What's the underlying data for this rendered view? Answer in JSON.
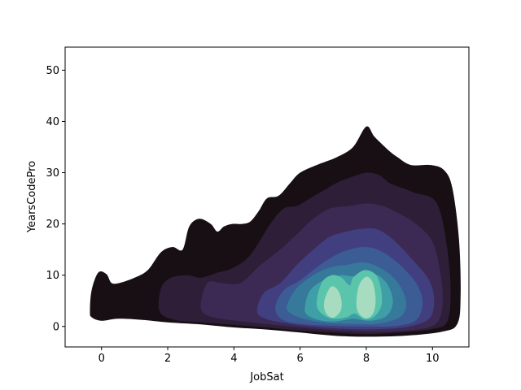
{
  "chart_data": {
    "type": "kde-density-contour",
    "title": "",
    "xlabel": "JobSat",
    "ylabel": "YearsCodePro",
    "xlim": [
      -1.1,
      11.1
    ],
    "ylim": [
      -4,
      54.5
    ],
    "x_ticks": [
      0,
      2,
      4,
      6,
      8,
      10
    ],
    "y_ticks": [
      0,
      10,
      20,
      30,
      40,
      50
    ],
    "grid": false,
    "legend": "none",
    "colormap": "mako",
    "level_colors": [
      "#170f13",
      "#2e1e38",
      "#3c2a55",
      "#413f7f",
      "#3c5c96",
      "#36799b",
      "#3f9fa6",
      "#5bc5ac",
      "#a8dcc0"
    ],
    "level_outlines": [
      [
        [
          -0.35,
          3
        ],
        [
          -0.3,
          7
        ],
        [
          -0.1,
          10.5
        ],
        [
          0.15,
          10.2
        ],
        [
          0.3,
          8.5
        ],
        [
          0.55,
          8.5
        ],
        [
          1.0,
          9.5
        ],
        [
          1.4,
          11
        ],
        [
          1.8,
          14.5
        ],
        [
          2.15,
          15.5
        ],
        [
          2.45,
          15
        ],
        [
          2.65,
          19.5
        ],
        [
          2.95,
          21
        ],
        [
          3.3,
          20
        ],
        [
          3.5,
          18.5
        ],
        [
          3.7,
          19.5
        ],
        [
          3.95,
          20
        ],
        [
          4.25,
          20
        ],
        [
          4.5,
          20.5
        ],
        [
          4.75,
          22.5
        ],
        [
          5.0,
          25
        ],
        [
          5.35,
          25.5
        ],
        [
          5.7,
          28
        ],
        [
          6.0,
          30
        ],
        [
          6.5,
          31.5
        ],
        [
          7.1,
          33
        ],
        [
          7.6,
          35
        ],
        [
          8.0,
          39
        ],
        [
          8.25,
          37
        ],
        [
          8.65,
          34.5
        ],
        [
          8.95,
          33
        ],
        [
          9.35,
          31.5
        ],
        [
          9.95,
          31.5
        ],
        [
          10.35,
          30.5
        ],
        [
          10.6,
          27
        ],
        [
          10.8,
          17
        ],
        [
          10.85,
          6
        ],
        [
          10.75,
          0.5
        ],
        [
          10.3,
          -1
        ],
        [
          9.2,
          -1.8
        ],
        [
          8.0,
          -2
        ],
        [
          7.0,
          -1.8
        ],
        [
          6.0,
          -1.2
        ],
        [
          5.0,
          -0.6
        ],
        [
          4.0,
          -0.2
        ],
        [
          3.0,
          0.4
        ],
        [
          2.0,
          0.8
        ],
        [
          1.2,
          1.3
        ],
        [
          0.5,
          1.5
        ],
        [
          0.0,
          1.1
        ],
        [
          -0.3,
          1.8
        ]
      ],
      [
        [
          1.75,
          3
        ],
        [
          1.8,
          7.5
        ],
        [
          2.1,
          9.5
        ],
        [
          2.6,
          10
        ],
        [
          3.0,
          9.5
        ],
        [
          3.5,
          10.5
        ],
        [
          4.0,
          11.5
        ],
        [
          4.5,
          14
        ],
        [
          5.1,
          20
        ],
        [
          5.5,
          23
        ],
        [
          5.9,
          23.5
        ],
        [
          6.3,
          25
        ],
        [
          6.7,
          26.5
        ],
        [
          7.1,
          28
        ],
        [
          7.5,
          29
        ],
        [
          8.0,
          30
        ],
        [
          8.4,
          29.5
        ],
        [
          8.7,
          28
        ],
        [
          9.1,
          27
        ],
        [
          9.5,
          26
        ],
        [
          10.0,
          25
        ],
        [
          10.25,
          22
        ],
        [
          10.45,
          15
        ],
        [
          10.55,
          7
        ],
        [
          10.45,
          1
        ],
        [
          10.0,
          -0.5
        ],
        [
          9.0,
          -1.2
        ],
        [
          8.0,
          -1.5
        ],
        [
          7.0,
          -1.2
        ],
        [
          6.0,
          -0.8
        ],
        [
          5.0,
          -0.2
        ],
        [
          4.0,
          0.3
        ],
        [
          3.0,
          0.8
        ],
        [
          2.2,
          1.3
        ]
      ],
      [
        [
          3.0,
          4.5
        ],
        [
          3.2,
          8.5
        ],
        [
          3.6,
          8.5
        ],
        [
          4.2,
          8.5
        ],
        [
          4.8,
          12
        ],
        [
          5.4,
          15
        ],
        [
          5.9,
          18
        ],
        [
          6.4,
          21
        ],
        [
          6.9,
          23
        ],
        [
          7.5,
          23.5
        ],
        [
          8.0,
          24
        ],
        [
          8.5,
          23.5
        ],
        [
          9.0,
          22
        ],
        [
          9.5,
          20
        ],
        [
          10.0,
          16.5
        ],
        [
          10.25,
          10
        ],
        [
          10.3,
          4
        ],
        [
          10.1,
          0.5
        ],
        [
          9.5,
          -0.6
        ],
        [
          8.5,
          -1.0
        ],
        [
          7.5,
          -0.9
        ],
        [
          6.5,
          -0.5
        ],
        [
          5.5,
          0.1
        ],
        [
          4.5,
          0.8
        ],
        [
          3.6,
          1.5
        ],
        [
          3.1,
          2.5
        ]
      ],
      [
        [
          4.7,
          3
        ],
        [
          4.9,
          6.5
        ],
        [
          5.4,
          8.5
        ],
        [
          5.9,
          12
        ],
        [
          6.4,
          15
        ],
        [
          6.9,
          17.5
        ],
        [
          7.4,
          18.5
        ],
        [
          7.8,
          19
        ],
        [
          8.3,
          19
        ],
        [
          8.8,
          17
        ],
        [
          9.4,
          13
        ],
        [
          9.9,
          9
        ],
        [
          10.05,
          5
        ],
        [
          9.9,
          1.5
        ],
        [
          9.3,
          0
        ],
        [
          8.5,
          -0.5
        ],
        [
          7.5,
          -0.5
        ],
        [
          6.5,
          -0.1
        ],
        [
          5.6,
          0.6
        ],
        [
          4.95,
          1.5
        ]
      ],
      [
        [
          5.25,
          3.5
        ],
        [
          5.5,
          7
        ],
        [
          6.0,
          9
        ],
        [
          6.6,
          12
        ],
        [
          7.1,
          14
        ],
        [
          7.5,
          15
        ],
        [
          8.0,
          15.5
        ],
        [
          8.5,
          14.5
        ],
        [
          9.1,
          11.5
        ],
        [
          9.55,
          8
        ],
        [
          9.7,
          4.5
        ],
        [
          9.5,
          1.2
        ],
        [
          8.9,
          0.1
        ],
        [
          8.0,
          0
        ],
        [
          7.1,
          0.1
        ],
        [
          6.2,
          0.4
        ],
        [
          5.5,
          1.2
        ]
      ],
      [
        [
          5.6,
          4
        ],
        [
          5.9,
          7.5
        ],
        [
          6.4,
          10
        ],
        [
          6.9,
          11.5
        ],
        [
          7.4,
          12
        ],
        [
          7.9,
          12.5
        ],
        [
          8.4,
          11.5
        ],
        [
          8.9,
          9
        ],
        [
          9.2,
          5
        ],
        [
          9.05,
          2
        ],
        [
          8.4,
          0.6
        ],
        [
          7.6,
          0.5
        ],
        [
          6.8,
          0.7
        ],
        [
          6.1,
          1.5
        ],
        [
          5.7,
          2.6
        ]
      ],
      [
        [
          6.15,
          4
        ],
        [
          6.3,
          7
        ],
        [
          6.7,
          9
        ],
        [
          7.2,
          10
        ],
        [
          7.6,
          9.8
        ],
        [
          8.0,
          10.5
        ],
        [
          8.4,
          9.8
        ],
        [
          8.7,
          7.5
        ],
        [
          8.8,
          4.5
        ],
        [
          8.6,
          2
        ],
        [
          8.1,
          1.1
        ],
        [
          7.6,
          1.5
        ],
        [
          7.1,
          1.0
        ],
        [
          6.6,
          1.2
        ],
        [
          6.2,
          2.3
        ]
      ],
      [
        [
          6.5,
          4.5
        ],
        [
          6.65,
          8.5
        ],
        [
          6.95,
          10
        ],
        [
          7.25,
          9.5
        ],
        [
          7.5,
          8
        ],
        [
          7.6,
          9.5
        ],
        [
          7.95,
          11
        ],
        [
          8.3,
          10
        ],
        [
          8.45,
          7
        ],
        [
          8.45,
          4
        ],
        [
          8.25,
          2
        ],
        [
          7.95,
          1.4
        ],
        [
          7.65,
          2.5
        ],
        [
          7.4,
          1.8
        ],
        [
          7.0,
          1.5
        ],
        [
          6.65,
          2.5
        ]
      ],
      [
        [
          6.72,
          4
        ],
        [
          6.78,
          6
        ],
        [
          6.95,
          7.8
        ],
        [
          7.15,
          7
        ],
        [
          7.25,
          5
        ],
        [
          7.22,
          3
        ],
        [
          7.0,
          1.7
        ],
        [
          6.8,
          2.4
        ]
      ],
      [
        [
          7.7,
          4.5
        ],
        [
          7.78,
          8
        ],
        [
          8.0,
          9.7
        ],
        [
          8.2,
          8.5
        ],
        [
          8.28,
          5
        ],
        [
          8.2,
          2.5
        ],
        [
          8.0,
          1.6
        ],
        [
          7.78,
          2.5
        ]
      ]
    ],
    "level_index_for_outline": [
      0,
      1,
      2,
      3,
      4,
      5,
      6,
      7,
      8,
      8
    ]
  }
}
